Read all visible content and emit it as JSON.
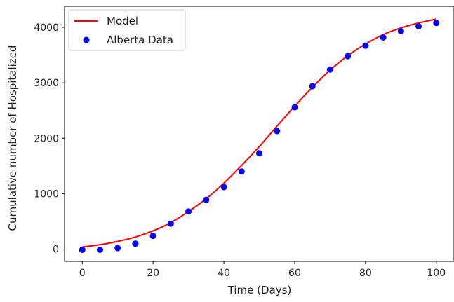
{
  "chart_data": {
    "type": "line",
    "title": "",
    "xlabel": "Time (Days)",
    "ylabel": "Cumulative number of Hospitalized",
    "xlim": [
      -5,
      105
    ],
    "ylim": [
      -220,
      4380
    ],
    "xticks": [
      0,
      20,
      40,
      60,
      80,
      100
    ],
    "yticks": [
      0,
      1000,
      2000,
      3000,
      4000
    ],
    "grid": false,
    "legend_position": "top-left",
    "series": [
      {
        "name": "Model",
        "kind": "line",
        "color": "#ff0000",
        "x": [
          0,
          5,
          10,
          15,
          20,
          25,
          30,
          35,
          40,
          45,
          50,
          55,
          60,
          65,
          70,
          75,
          80,
          85,
          90,
          95,
          100
        ],
        "y": [
          40,
          80,
          140,
          220,
          330,
          480,
          680,
          910,
          1190,
          1510,
          1850,
          2220,
          2580,
          2920,
          3230,
          3490,
          3700,
          3870,
          3990,
          4080,
          4150
        ]
      },
      {
        "name": "Alberta Data",
        "kind": "scatter",
        "color": "#0000ff",
        "x": [
          0,
          5,
          10,
          15,
          20,
          25,
          30,
          35,
          40,
          45,
          50,
          55,
          60,
          65,
          70,
          75,
          80,
          85,
          90,
          95,
          100
        ],
        "y": [
          -10,
          -10,
          20,
          100,
          240,
          460,
          680,
          890,
          1120,
          1400,
          1730,
          2130,
          2560,
          2940,
          3240,
          3480,
          3670,
          3820,
          3930,
          4020,
          4080
        ]
      }
    ]
  }
}
